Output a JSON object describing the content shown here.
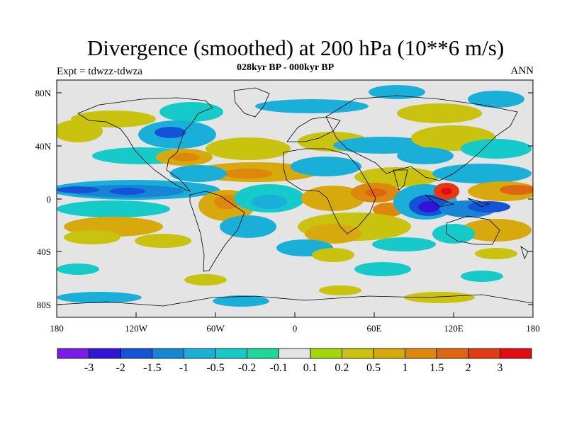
{
  "title": "Divergence (smoothed) at 200 hPa (10**6 m/s)",
  "subtitle_left": "Expt = tdwzz-tdwza",
  "subtitle_center": "028kyr BP - 000kyr BP",
  "subtitle_right": "ANN",
  "y_ticks": [
    "80N",
    "40N",
    "0",
    "40S",
    "80S"
  ],
  "x_ticks": [
    "180",
    "120W",
    "60W",
    "0",
    "60E",
    "120E",
    "180"
  ],
  "colorbar": {
    "colors": [
      "#7a1be6",
      "#3214d6",
      "#1453d8",
      "#1784d6",
      "#1aafd9",
      "#15cac8",
      "#1fd79a",
      "#e4e4e4",
      "#a2d60a",
      "#c9c20f",
      "#d7a90c",
      "#dd870c",
      "#df6510",
      "#e23a13",
      "#e40a12"
    ],
    "labels": [
      "-3",
      "-2",
      "-1.5",
      "-1",
      "-0.5",
      "-0.2",
      "-0.1",
      "0.1",
      "0.2",
      "0.5",
      "1",
      "1.5",
      "2",
      "3"
    ]
  },
  "map_colors": {
    "background": "#e4e4e4",
    "coast": "#000000"
  }
}
